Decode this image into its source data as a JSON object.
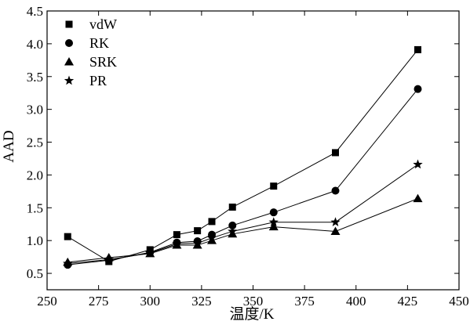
{
  "chart_data": {
    "type": "line",
    "title": "",
    "xlabel": "温度/K",
    "ylabel": "AAD",
    "xlim": [
      250,
      450
    ],
    "ylim": [
      0.25,
      4.5
    ],
    "xticks": [
      250,
      275,
      300,
      325,
      350,
      375,
      400,
      425,
      450
    ],
    "yticks": [
      0.5,
      1.0,
      1.5,
      2.0,
      2.5,
      3.0,
      3.5,
      4.0,
      4.5
    ],
    "xtick_labels": [
      "250",
      "275",
      "300",
      "325",
      "350",
      "375",
      "400",
      "425",
      "450"
    ],
    "ytick_labels": [
      "0.5",
      "1.0",
      "1.5",
      "2.0",
      "2.5",
      "3.0",
      "3.5",
      "4.0",
      "4.5"
    ],
    "grid": false,
    "legend_position": "top-left",
    "series": [
      {
        "name": "vdW",
        "marker": "square",
        "x": [
          260,
          280,
          300,
          313,
          323,
          330,
          340,
          360,
          390,
          430
        ],
        "y": [
          1.06,
          0.68,
          0.86,
          1.09,
          1.15,
          1.29,
          1.51,
          1.83,
          2.34,
          3.91
        ]
      },
      {
        "name": "RK",
        "marker": "circle",
        "x": [
          260,
          280,
          300,
          313,
          323,
          330,
          340,
          360,
          390,
          430
        ],
        "y": [
          0.63,
          0.7,
          0.82,
          0.97,
          0.99,
          1.09,
          1.23,
          1.43,
          1.76,
          3.31
        ]
      },
      {
        "name": "SRK",
        "marker": "triangle",
        "x": [
          260,
          280,
          300,
          313,
          323,
          330,
          340,
          360,
          390,
          430
        ],
        "y": [
          0.67,
          0.74,
          0.8,
          0.93,
          0.93,
          1.0,
          1.1,
          1.21,
          1.14,
          1.64
        ]
      },
      {
        "name": "PR",
        "marker": "star",
        "x": [
          260,
          280,
          300,
          313,
          323,
          330,
          340,
          360,
          390,
          430
        ],
        "y": [
          0.65,
          0.71,
          0.81,
          0.95,
          0.96,
          1.04,
          1.14,
          1.28,
          1.28,
          2.16
        ]
      }
    ]
  }
}
